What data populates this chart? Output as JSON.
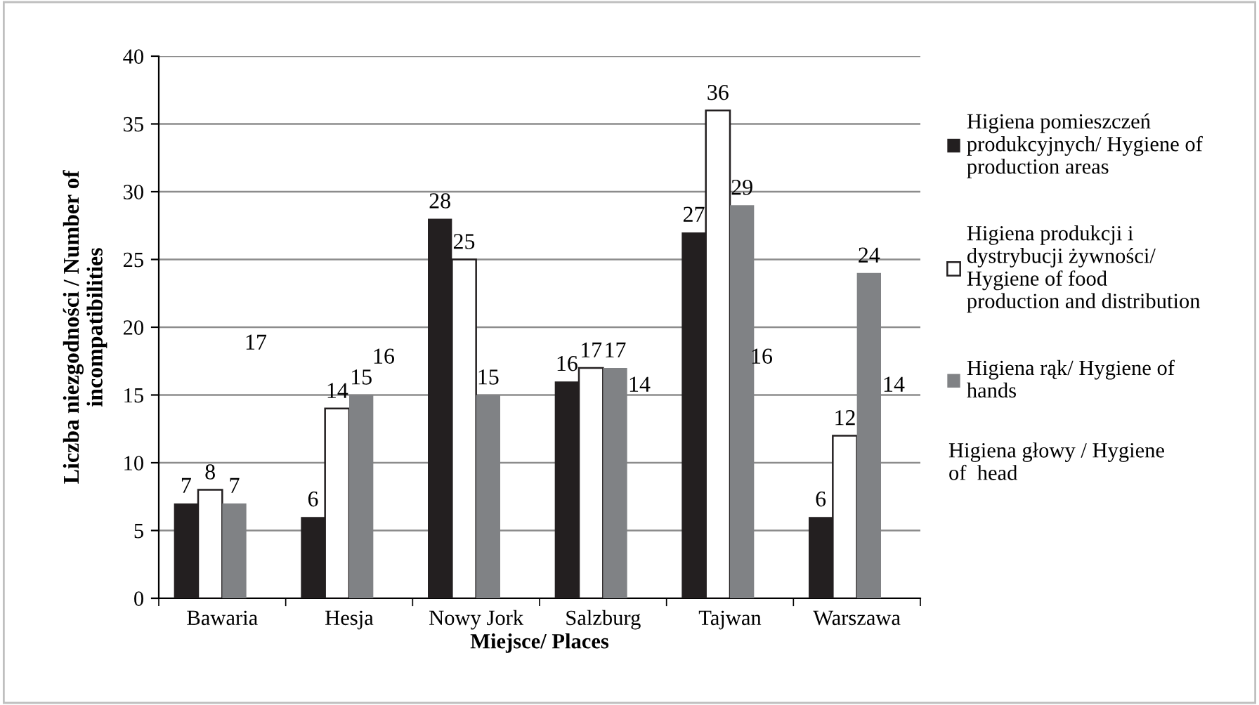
{
  "chart_data": {
    "type": "bar",
    "xlabel": "Miejsce/ Places",
    "ylabel": "Liczba niezgodności / Number of\nincompatibilities",
    "categories": [
      "Bawaria",
      "Hesja",
      "Nowy Jork",
      "Salzburg",
      "Tajwan",
      "Warszawa"
    ],
    "series": [
      {
        "name": "Higiena pomieszczeń\nprodukcyjnych/ Hygiene of\nproduction areas",
        "color": "#231f20",
        "values": [
          7,
          6,
          28,
          16,
          27,
          6
        ]
      },
      {
        "name": "Higiena produkcji i\ndystrybucji żywności/\nHygiene of food\nproduction and distribution",
        "color": "#ffffff",
        "values": [
          8,
          14,
          25,
          17,
          36,
          12
        ]
      },
      {
        "name": "Higiena rąk/ Hygiene of\nhands",
        "color": "#808285",
        "values": [
          7,
          15,
          15,
          17,
          29,
          24
        ]
      }
    ],
    "annotations": [
      "17",
      "16",
      "14",
      "16",
      "14",
      "Higiena głowy / Hygiene\nof  head"
    ],
    "ylim": [
      0,
      40
    ],
    "yticks": [
      0,
      5,
      10,
      15,
      20,
      25,
      30,
      35,
      40
    ],
    "grid": "y",
    "legend": "right",
    "data_labels": true
  }
}
